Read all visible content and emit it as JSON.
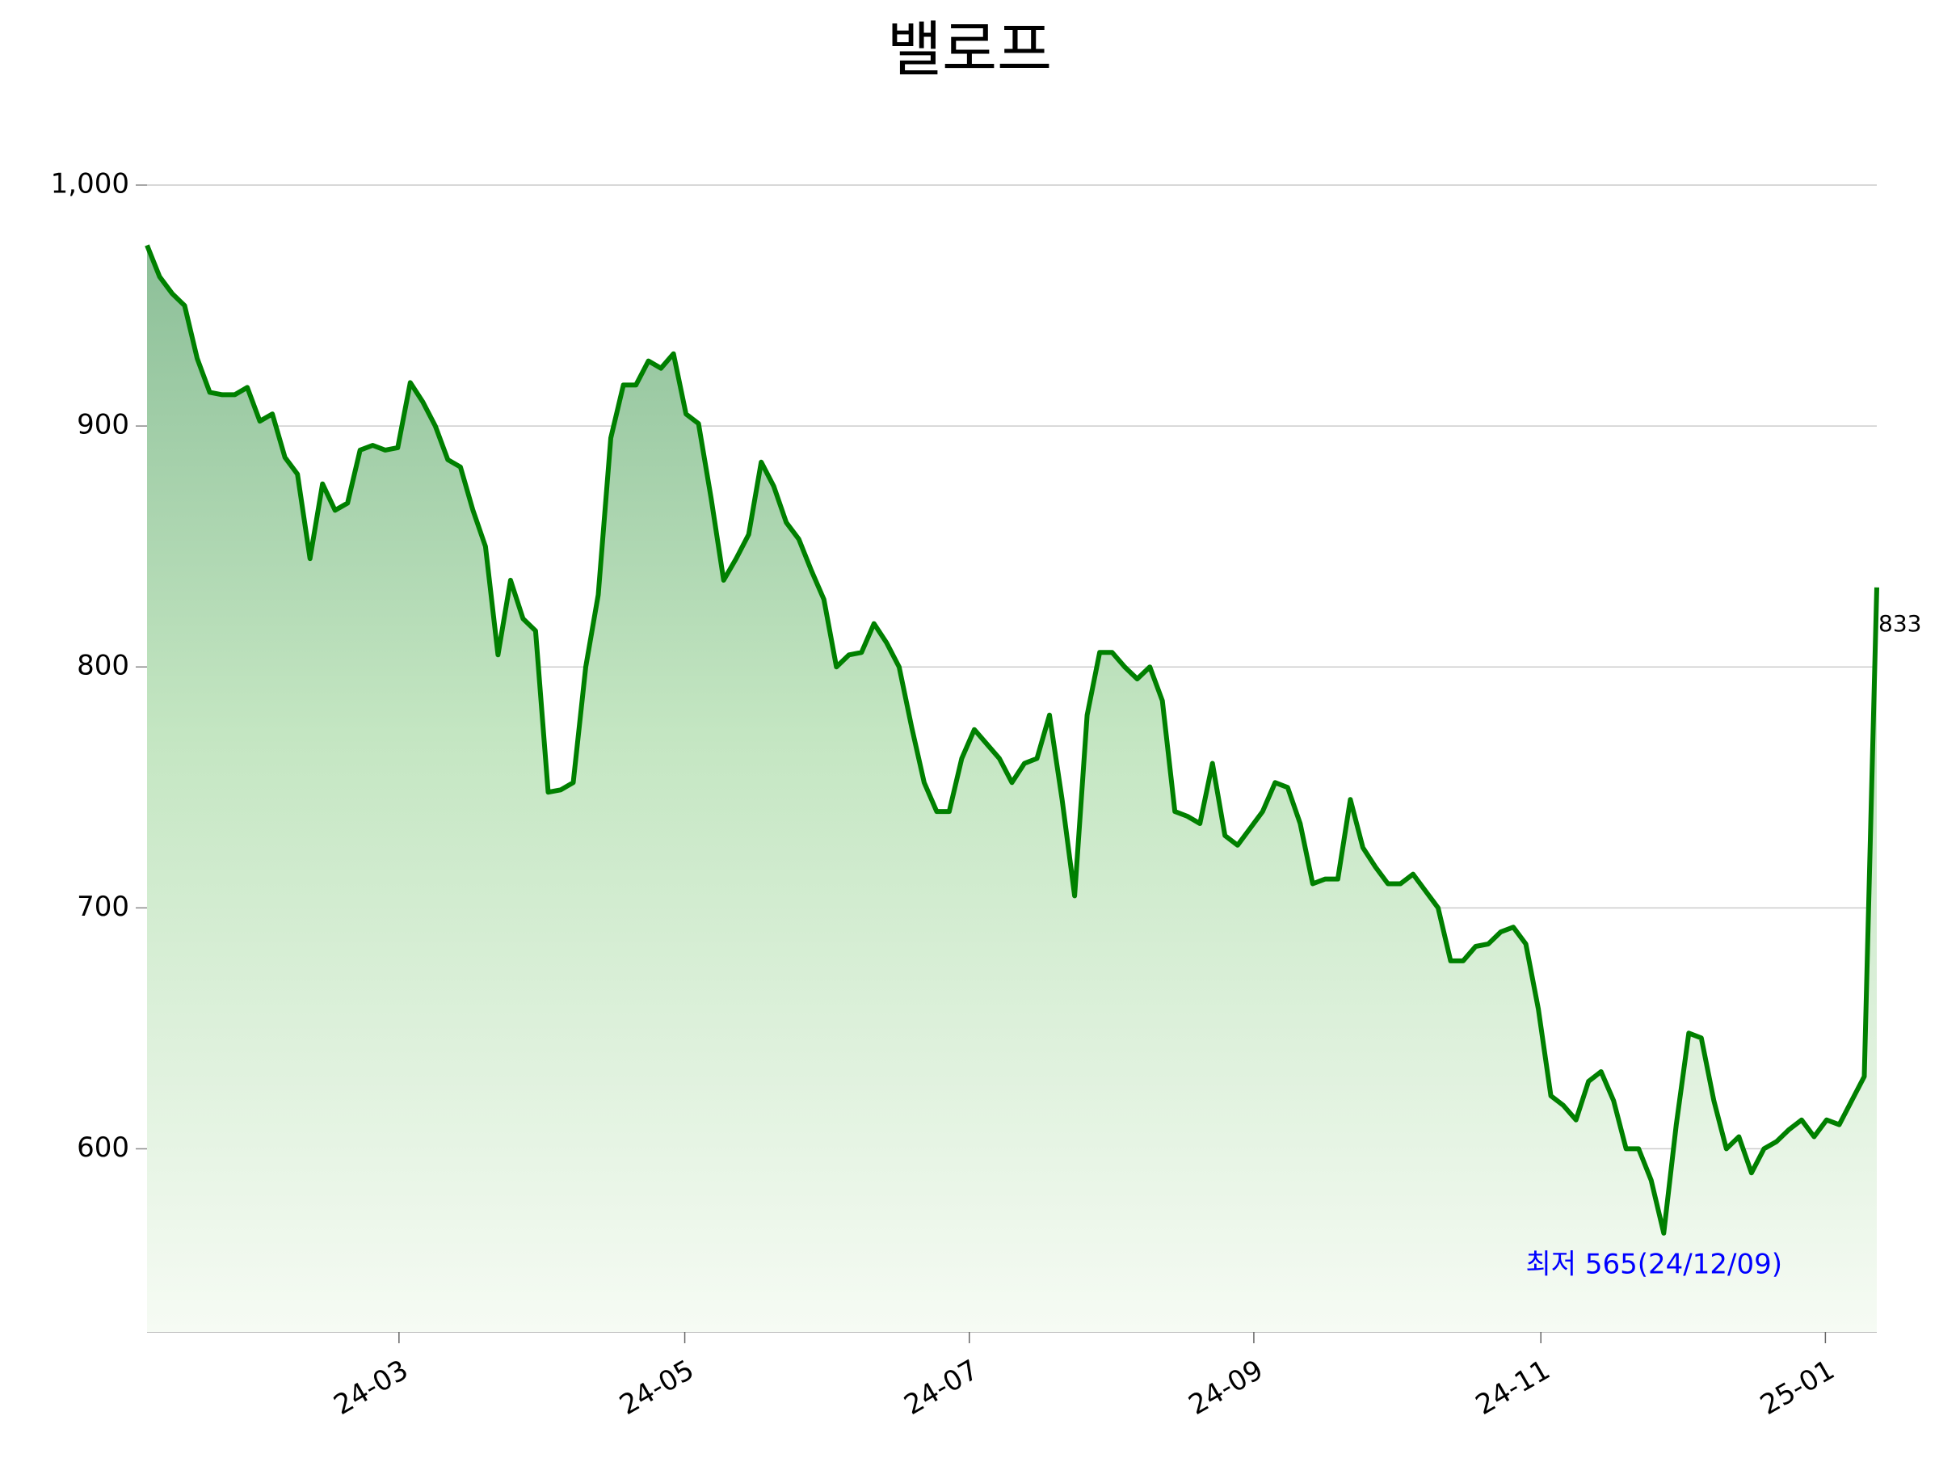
{
  "chart_data": {
    "type": "line",
    "title": "밸로프",
    "color": "#008000",
    "grid": true,
    "xlim": [
      0,
      138
    ],
    "xticks": [
      {
        "value": 20.1,
        "label": "24-03"
      },
      {
        "value": 42.9,
        "label": "24-05"
      },
      {
        "value": 65.6,
        "label": "24-07"
      },
      {
        "value": 88.3,
        "label": "24-09"
      },
      {
        "value": 111.2,
        "label": "24-11"
      },
      {
        "value": 133.9,
        "label": "25-01"
      }
    ],
    "ylim": [
      524,
      1000
    ],
    "yticks": [
      {
        "value": 1000,
        "label": "1,000"
      },
      900,
      800,
      700,
      600
    ],
    "annotation": "최저 565(24/12/09)",
    "annotation_index": 121,
    "values": [
      975,
      962,
      955,
      950,
      928,
      914,
      913,
      913,
      916,
      902,
      905,
      887,
      880,
      845,
      876,
      865,
      868,
      890,
      892,
      890,
      891,
      918,
      910,
      900,
      886,
      883,
      865,
      850,
      805,
      836,
      820,
      815,
      748,
      749,
      752,
      800,
      830,
      895,
      917,
      917,
      927,
      924,
      930,
      905,
      901,
      870,
      836,
      845,
      855,
      885,
      875,
      860,
      853,
      840,
      828,
      800,
      805,
      806,
      818,
      810,
      800,
      775,
      752,
      740,
      740,
      762,
      774,
      768,
      762,
      752,
      760,
      762,
      780,
      745,
      705,
      780,
      806,
      806,
      800,
      795,
      800,
      786,
      740,
      738,
      735,
      760,
      730,
      726,
      733,
      740,
      752,
      750,
      735,
      710,
      712,
      712,
      745,
      725,
      717,
      710,
      710,
      714,
      707,
      700,
      678,
      678,
      684,
      685,
      690,
      692,
      685,
      658,
      622,
      618,
      612,
      628,
      632,
      620,
      600,
      600,
      587,
      565,
      610,
      648,
      646,
      620,
      600,
      605,
      590,
      600,
      603,
      608,
      612,
      605,
      612,
      610,
      620,
      630,
      833
    ]
  }
}
